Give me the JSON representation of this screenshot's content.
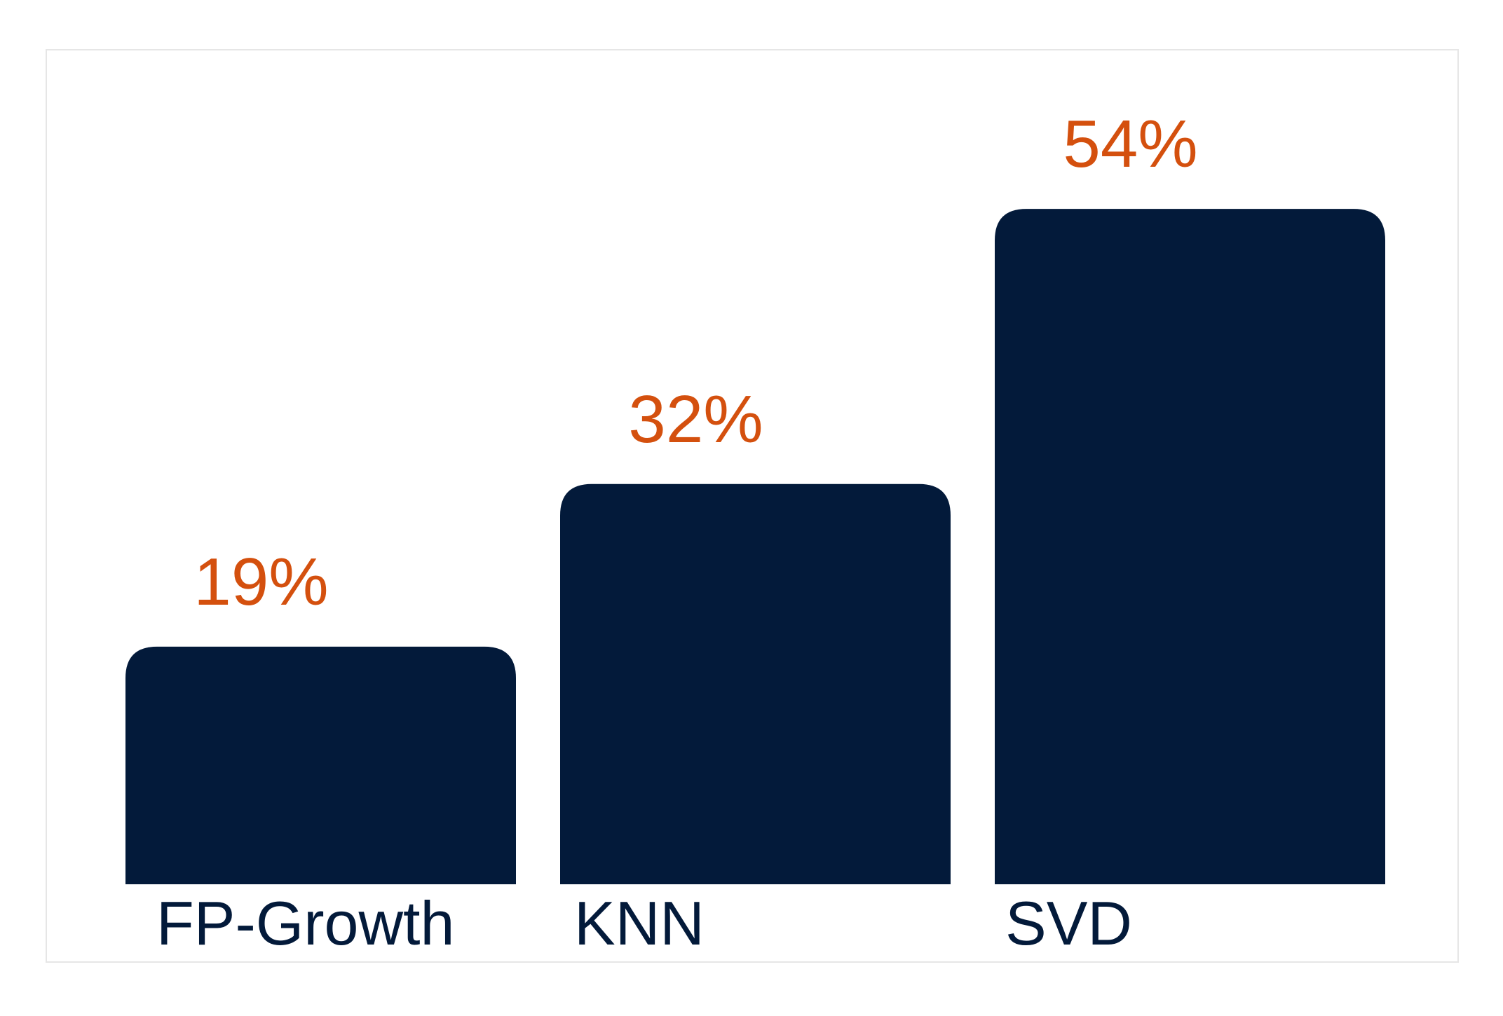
{
  "chart_data": {
    "type": "bar",
    "title": "",
    "xlabel": "",
    "ylabel": "",
    "categories": [
      "FP-Growth",
      "KNN",
      "SVD"
    ],
    "values": [
      19,
      32,
      54
    ],
    "value_labels": [
      "19%",
      "32%",
      "54%"
    ],
    "unit": "%",
    "ylim": [
      0,
      62
    ],
    "grid": false,
    "legend": "none",
    "colors": {
      "bar": "#031A3A",
      "value_label": "#D4500E",
      "category_label": "#031A3A",
      "frame": "#E6E6E6"
    }
  }
}
